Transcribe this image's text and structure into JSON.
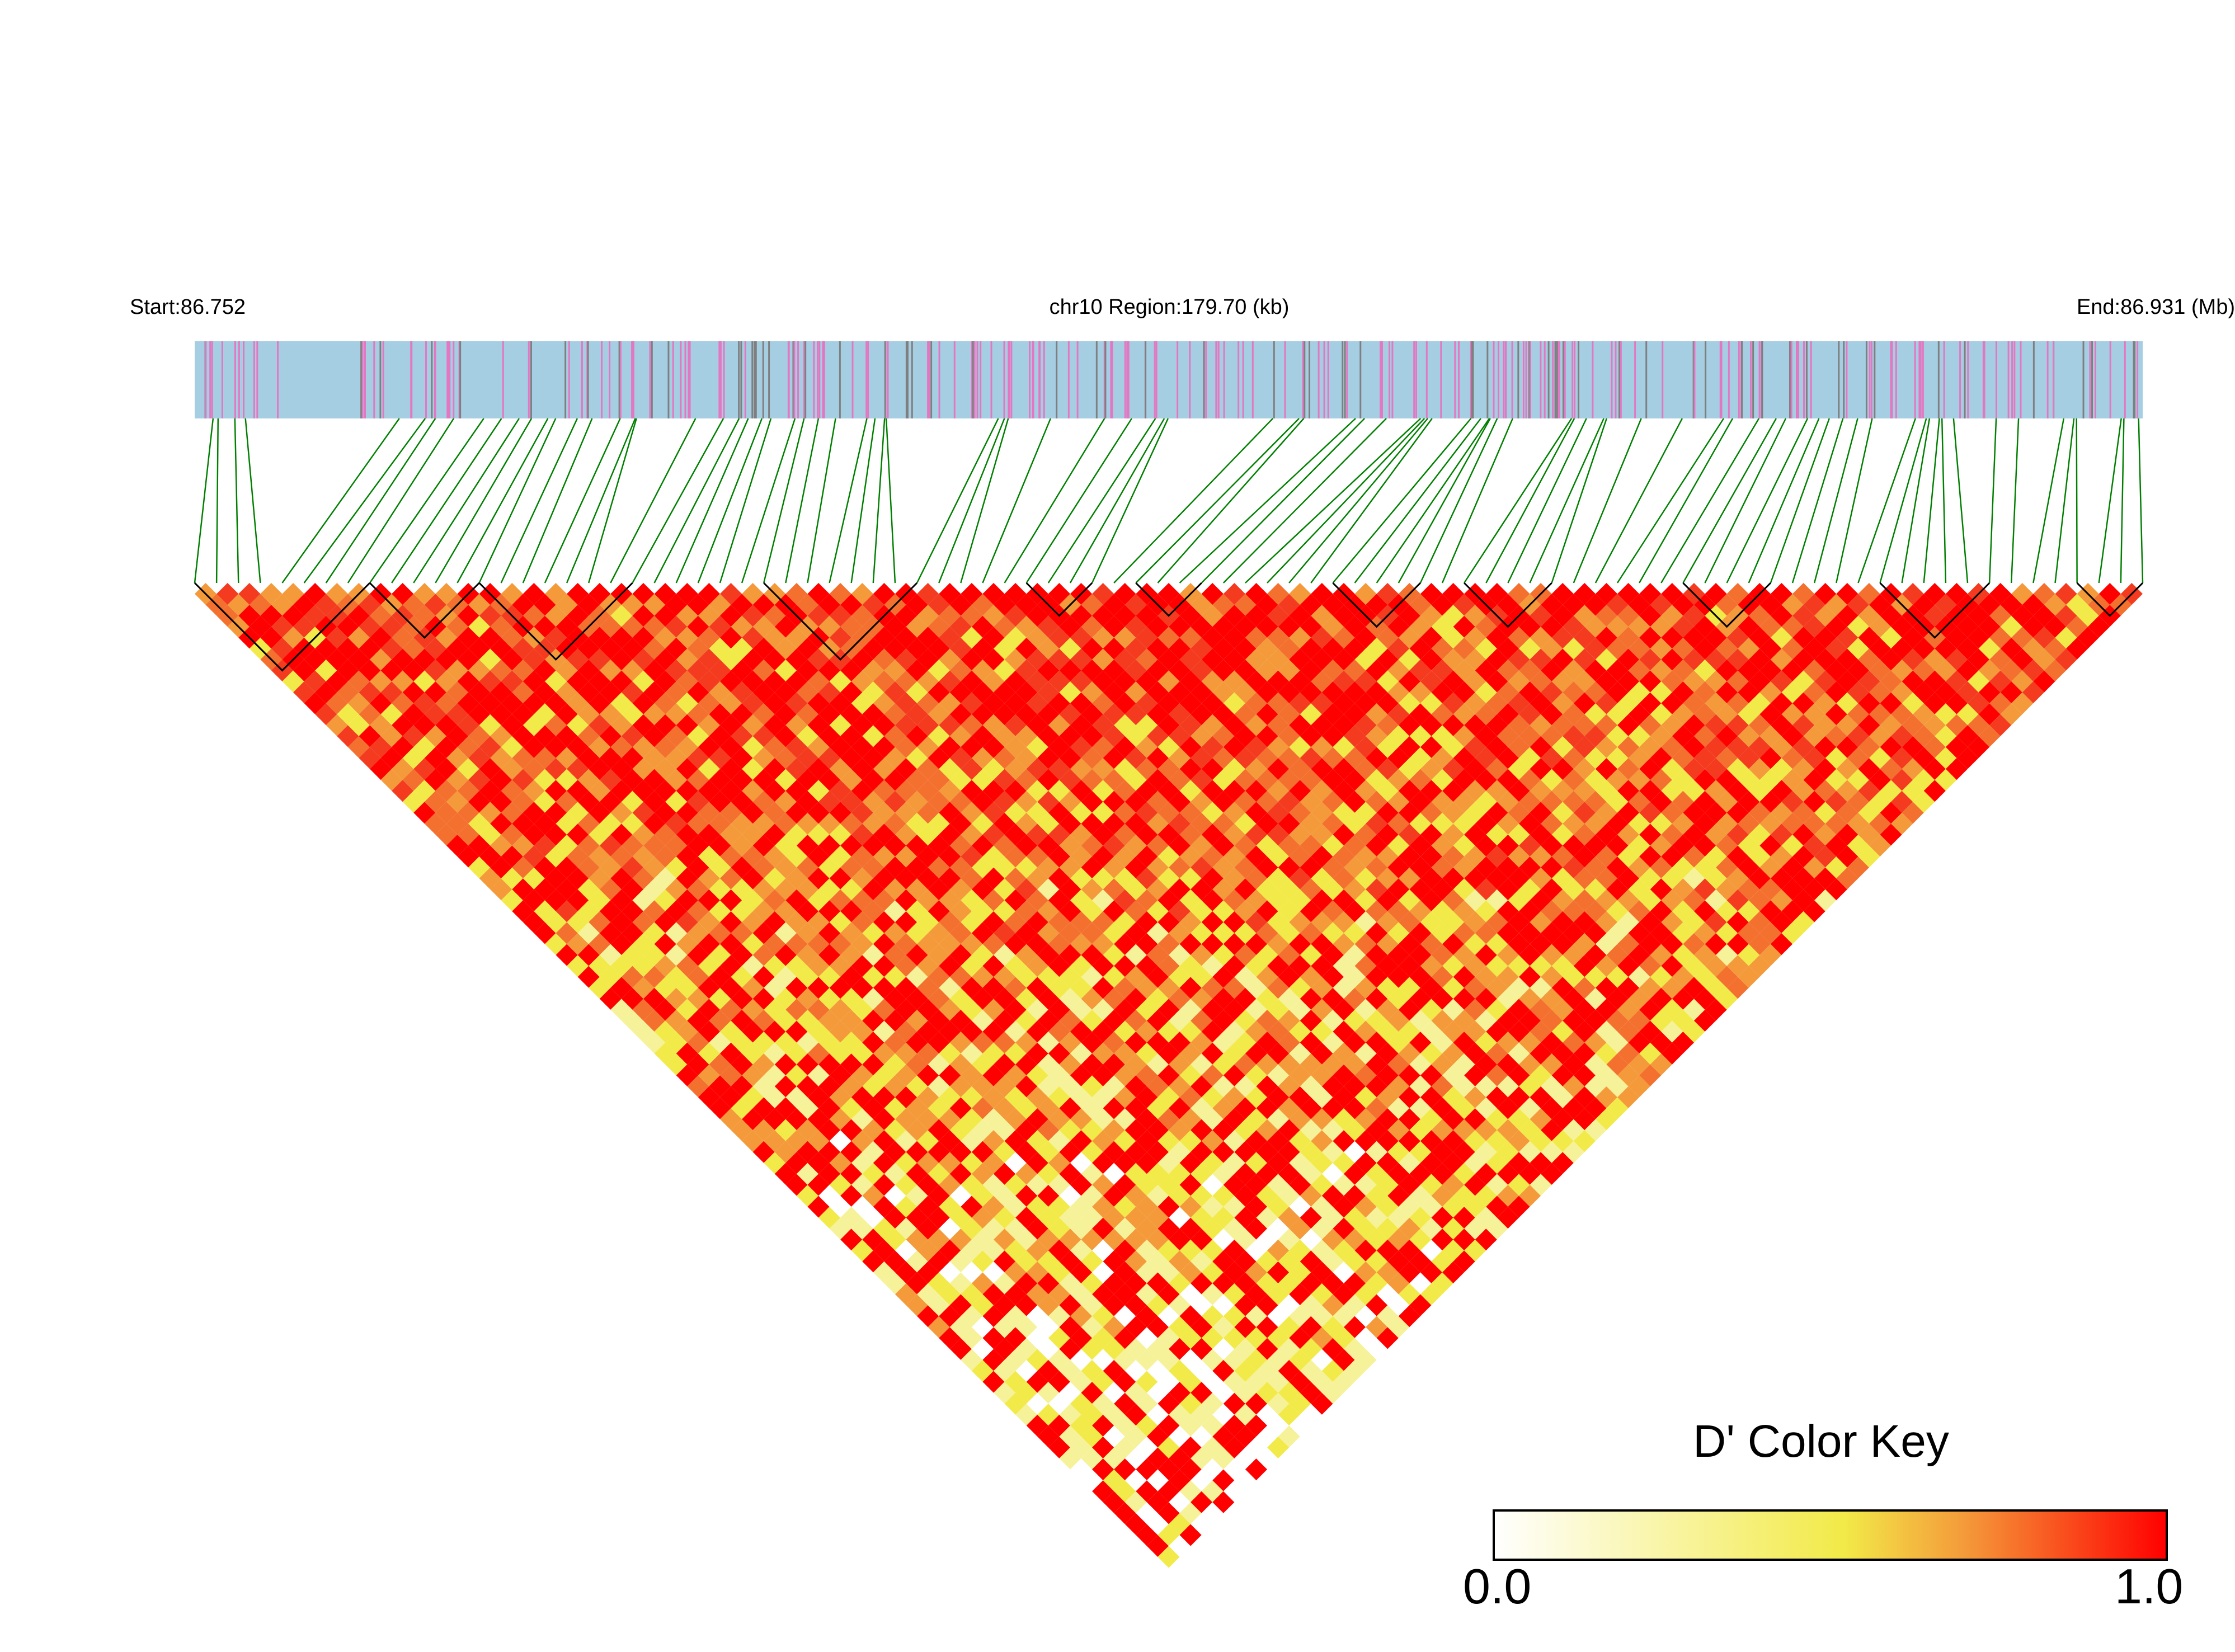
{
  "chart_data": {
    "type": "heatmap",
    "subtype": "linkage-disequilibrium-triangle",
    "metric": "D'",
    "start_label": "Start:86.752",
    "region_label": "chr10 Region:179.70 (kb)",
    "end_label": "End:86.931 (Mb)",
    "chromosome": "chr10",
    "start_mb": 86.752,
    "end_mb": 86.931,
    "region_kb": 179.7,
    "value_range": [
      0.0,
      1.0
    ],
    "color_key": {
      "title": "D' Color Key",
      "min_label": "0.0",
      "max_label": "1.0",
      "stops": [
        "#ffffff",
        "#f2ea48",
        "#f49a3a",
        "#ff0000"
      ]
    },
    "colors": {
      "track_background": "#a6cee3",
      "track_marks": [
        "#e377c2",
        "#7f7f7f"
      ],
      "connectors": "#008000",
      "block_outline": "#000000"
    },
    "grid": false,
    "legend_position": "bottom-right"
  }
}
